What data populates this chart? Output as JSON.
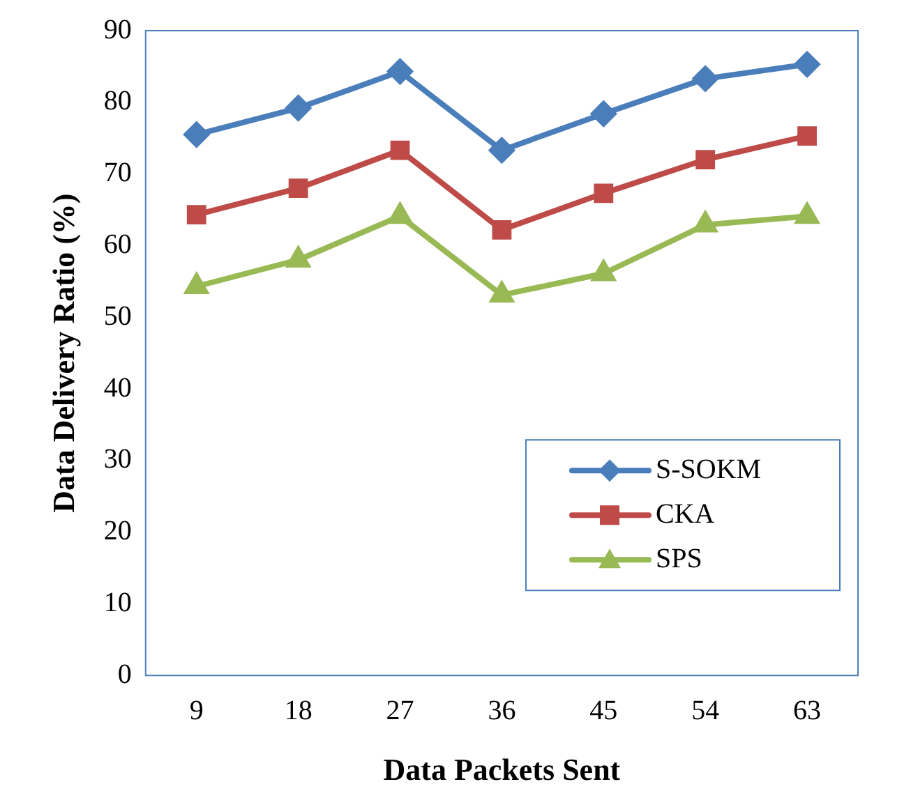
{
  "chart_data": {
    "type": "line",
    "xlabel": "Data Packets Sent",
    "ylabel": "Data Delivery Ratio (%)",
    "categories": [
      "9",
      "18",
      "27",
      "36",
      "45",
      "54",
      "63"
    ],
    "series": [
      {
        "name": "S-SOKM",
        "color": "#4a7ebb",
        "marker": "diamond",
        "values": [
          75.5,
          79.2,
          84.3,
          73.3,
          78.4,
          83.3,
          85.3
        ]
      },
      {
        "name": "CKA",
        "color": "#be4b48",
        "marker": "square",
        "values": [
          64.3,
          68,
          73.3,
          62.2,
          67.3,
          72,
          75.3
        ]
      },
      {
        "name": "SPS",
        "color": "#98b954",
        "marker": "triangle",
        "values": [
          54.3,
          58,
          64.1,
          53.1,
          56.1,
          62.9,
          64.1
        ]
      }
    ],
    "ylim": [
      0,
      90
    ],
    "yticks": [
      0,
      10,
      20,
      30,
      40,
      50,
      60,
      70,
      80,
      90
    ],
    "grid": false,
    "legend": "bottom right"
  }
}
